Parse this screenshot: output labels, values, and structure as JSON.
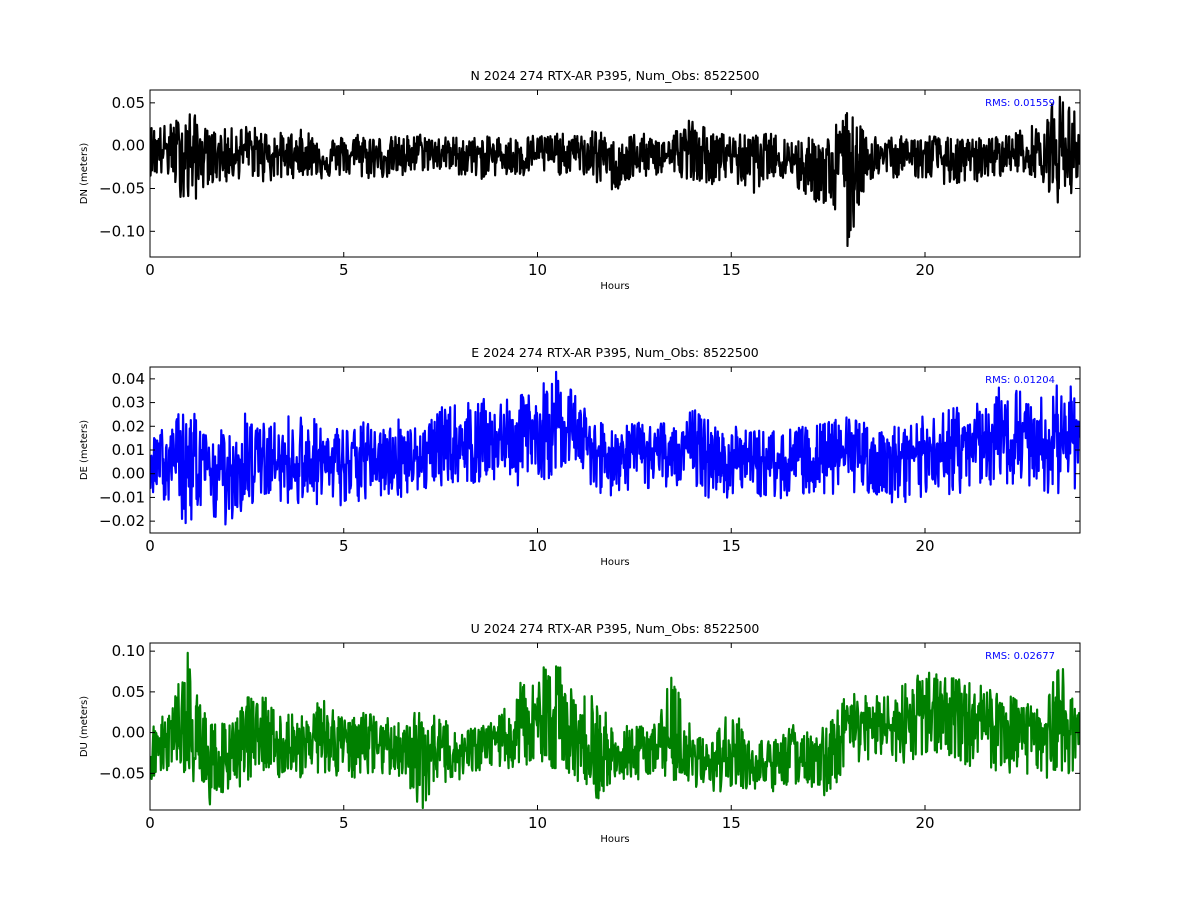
{
  "chart_data": [
    {
      "type": "line",
      "title": "N 2024 274 RTX-AR  P395, Num_Obs: 8522500",
      "xlabel": "Hours",
      "ylabel": "DN (meters)",
      "color": "#000000",
      "rms_text": "RMS:  0.01559",
      "xlim": [
        0,
        24
      ],
      "ylim": [
        -0.13,
        0.065
      ],
      "xticks": [
        0,
        5,
        10,
        15,
        20
      ],
      "xtick_labels": [
        "0",
        "5",
        "10",
        "15",
        "20"
      ],
      "yticks": [
        0.05,
        0.0,
        -0.05,
        -0.1
      ],
      "ytick_labels": [
        "0.05",
        "0.00",
        "−0.05",
        "−0.10"
      ],
      "grid": false,
      "series": [
        {
          "x": [
            0,
            0.5,
            1,
            1.5,
            2,
            2.5,
            3,
            3.5,
            4,
            4.5,
            5,
            5.5,
            6,
            6.5,
            7,
            7.5,
            8,
            8.5,
            9,
            9.5,
            10,
            10.5,
            11,
            11.5,
            12,
            12.5,
            13,
            13.5,
            14,
            14.5,
            15,
            15.5,
            16,
            16.5,
            17,
            17.5,
            18,
            18.5,
            19,
            19.5,
            20,
            20.5,
            21,
            21.5,
            22,
            22.5,
            23,
            23.5,
            24
          ],
          "center": [
            -0.005,
            -0.003,
            -0.005,
            -0.008,
            -0.01,
            -0.003,
            -0.008,
            -0.012,
            -0.008,
            -0.015,
            -0.012,
            -0.01,
            -0.012,
            -0.013,
            -0.005,
            -0.008,
            -0.01,
            -0.012,
            -0.01,
            -0.012,
            -0.008,
            -0.01,
            -0.008,
            -0.008,
            -0.02,
            -0.015,
            -0.012,
            -0.01,
            -0.005,
            -0.012,
            -0.01,
            -0.008,
            -0.01,
            -0.015,
            -0.02,
            -0.03,
            -0.02,
            -0.012,
            -0.012,
            -0.01,
            -0.012,
            -0.015,
            -0.015,
            -0.01,
            -0.008,
            -0.01,
            -0.01,
            -0.005,
            -0.008
          ],
          "upper": [
            0.025,
            0.025,
            0.045,
            0.018,
            0.02,
            0.025,
            0.018,
            0.015,
            0.02,
            0.01,
            0.012,
            0.018,
            0.01,
            0.012,
            0.015,
            0.01,
            0.012,
            0.01,
            0.012,
            0.01,
            0.015,
            0.015,
            0.012,
            0.02,
            0.005,
            0.018,
            0.01,
            0.02,
            0.035,
            0.015,
            0.015,
            0.012,
            0.015,
            0.01,
            0.01,
            0.015,
            0.045,
            0.012,
            0.015,
            0.01,
            0.015,
            0.01,
            0.008,
            0.01,
            0.012,
            0.02,
            0.028,
            0.065,
            0.035
          ],
          "lower": [
            -0.035,
            -0.04,
            -0.075,
            -0.045,
            -0.045,
            -0.035,
            -0.045,
            -0.04,
            -0.035,
            -0.04,
            -0.035,
            -0.04,
            -0.038,
            -0.04,
            -0.03,
            -0.03,
            -0.035,
            -0.04,
            -0.035,
            -0.04,
            -0.032,
            -0.035,
            -0.03,
            -0.045,
            -0.055,
            -0.04,
            -0.035,
            -0.035,
            -0.04,
            -0.045,
            -0.04,
            -0.06,
            -0.035,
            -0.045,
            -0.065,
            -0.07,
            -0.13,
            -0.04,
            -0.04,
            -0.035,
            -0.04,
            -0.045,
            -0.05,
            -0.04,
            -0.035,
            -0.03,
            -0.04,
            -0.075,
            -0.04
          ]
        }
      ]
    },
    {
      "type": "line",
      "title": "E 2024 274 RTX-AR  P395, Num_Obs: 8522500",
      "xlabel": "Hours",
      "ylabel": "DE (meters)",
      "color": "#0000ff",
      "rms_text": "RMS:  0.01204",
      "xlim": [
        0,
        24
      ],
      "ylim": [
        -0.025,
        0.045
      ],
      "xticks": [
        0,
        5,
        10,
        15,
        20
      ],
      "xtick_labels": [
        "0",
        "5",
        "10",
        "15",
        "20"
      ],
      "yticks": [
        0.04,
        0.03,
        0.02,
        0.01,
        0.0,
        -0.01,
        -0.02
      ],
      "ytick_labels": [
        "0.04",
        "0.03",
        "0.02",
        "0.01",
        "0.00",
        "−0.01",
        "−0.02"
      ],
      "grid": false,
      "series": [
        {
          "x": [
            0,
            0.5,
            1,
            1.5,
            2,
            2.5,
            3,
            3.5,
            4,
            4.5,
            5,
            5.5,
            6,
            6.5,
            7,
            7.5,
            8,
            8.5,
            9,
            9.5,
            10,
            10.5,
            11,
            11.5,
            12,
            12.5,
            13,
            13.5,
            14,
            14.5,
            15,
            15.5,
            16,
            16.5,
            17,
            17.5,
            18,
            18.5,
            19,
            19.5,
            20,
            20.5,
            21,
            21.5,
            22,
            22.5,
            23,
            23.5,
            24
          ],
          "center": [
            0.005,
            0.003,
            0.002,
            0.0,
            0.003,
            0.005,
            0.004,
            0.005,
            0.006,
            0.005,
            0.004,
            0.006,
            0.006,
            0.007,
            0.007,
            0.01,
            0.012,
            0.013,
            0.014,
            0.016,
            0.018,
            0.02,
            0.02,
            0.01,
            0.008,
            0.009,
            0.008,
            0.01,
            0.01,
            0.008,
            0.007,
            0.005,
            0.005,
            0.004,
            0.005,
            0.006,
            0.008,
            0.007,
            0.006,
            0.006,
            0.008,
            0.012,
            0.012,
            0.013,
            0.014,
            0.015,
            0.013,
            0.015,
            0.015
          ],
          "upper": [
            0.02,
            0.018,
            0.035,
            0.015,
            0.02,
            0.033,
            0.02,
            0.025,
            0.027,
            0.02,
            0.02,
            0.022,
            0.02,
            0.025,
            0.02,
            0.028,
            0.03,
            0.032,
            0.03,
            0.033,
            0.036,
            0.045,
            0.034,
            0.022,
            0.02,
            0.022,
            0.02,
            0.025,
            0.028,
            0.022,
            0.02,
            0.02,
            0.018,
            0.02,
            0.02,
            0.022,
            0.025,
            0.022,
            0.02,
            0.02,
            0.025,
            0.028,
            0.03,
            0.03,
            0.045,
            0.035,
            0.033,
            0.04,
            0.035
          ],
          "lower": [
            -0.01,
            -0.012,
            -0.025,
            -0.02,
            -0.022,
            -0.015,
            -0.01,
            -0.012,
            -0.015,
            -0.012,
            -0.018,
            -0.012,
            -0.01,
            -0.01,
            -0.008,
            -0.005,
            -0.004,
            -0.005,
            -0.003,
            -0.005,
            -0.005,
            0.0,
            0.005,
            -0.008,
            -0.01,
            -0.006,
            -0.007,
            -0.005,
            -0.005,
            -0.012,
            -0.01,
            -0.01,
            -0.01,
            -0.012,
            -0.008,
            -0.01,
            -0.008,
            -0.008,
            -0.015,
            -0.02,
            -0.012,
            -0.01,
            -0.008,
            -0.006,
            -0.005,
            -0.005,
            -0.006,
            -0.015,
            -0.005
          ]
        }
      ]
    },
    {
      "type": "line",
      "title": "U 2024 274 RTX-AR  P395, Num_Obs: 8522500",
      "xlabel": "Hours",
      "ylabel": "DU (meters)",
      "color": "#008000",
      "rms_text": "RMS:  0.02677",
      "xlim": [
        0,
        24
      ],
      "ylim": [
        -0.095,
        0.11
      ],
      "xticks": [
        0,
        5,
        10,
        15,
        20
      ],
      "xtick_labels": [
        "0",
        "5",
        "10",
        "15",
        "20"
      ],
      "yticks": [
        0.1,
        0.05,
        0.0,
        -0.05
      ],
      "ytick_labels": [
        "0.10",
        "0.05",
        "0.00",
        "−0.05"
      ],
      "grid": false,
      "series": [
        {
          "x": [
            0,
            0.5,
            1,
            1.5,
            2,
            2.5,
            3,
            3.5,
            4,
            4.5,
            5,
            5.5,
            6,
            6.5,
            7,
            7.5,
            8,
            8.5,
            9,
            9.5,
            10,
            10.5,
            11,
            11.5,
            12,
            12.5,
            13,
            13.5,
            14,
            14.5,
            15,
            15.5,
            16,
            16.5,
            17,
            17.5,
            18,
            18.5,
            19,
            19.5,
            20,
            20.5,
            21,
            21.5,
            22,
            22.5,
            23,
            23.5,
            24
          ],
          "center": [
            -0.02,
            -0.005,
            0.0,
            -0.04,
            -0.03,
            0.0,
            0.0,
            -0.015,
            -0.01,
            -0.01,
            -0.015,
            -0.005,
            -0.01,
            -0.02,
            -0.02,
            -0.03,
            -0.025,
            -0.02,
            -0.01,
            0.0,
            0.015,
            0.02,
            -0.01,
            -0.03,
            -0.03,
            -0.025,
            -0.02,
            -0.01,
            -0.025,
            -0.035,
            -0.03,
            -0.035,
            -0.04,
            -0.03,
            -0.035,
            -0.03,
            0.0,
            0.005,
            0.01,
            0.015,
            0.025,
            0.03,
            0.025,
            0.02,
            0.015,
            0.01,
            0.0,
            0.005,
            0.01
          ],
          "upper": [
            0.01,
            0.025,
            0.11,
            0.01,
            0.02,
            0.045,
            0.045,
            0.03,
            0.025,
            0.05,
            0.015,
            0.025,
            0.02,
            0.015,
            0.03,
            0.02,
            0.0,
            0.01,
            0.02,
            0.06,
            0.085,
            0.09,
            0.04,
            0.06,
            0.0,
            0.015,
            0.01,
            0.075,
            0.0,
            -0.01,
            0.04,
            0.0,
            -0.01,
            0.015,
            0.0,
            0.01,
            0.05,
            0.045,
            0.055,
            0.06,
            0.08,
            0.075,
            0.065,
            0.06,
            0.05,
            0.04,
            0.035,
            0.09,
            0.025
          ],
          "lower": [
            -0.06,
            -0.055,
            -0.06,
            -0.09,
            -0.08,
            -0.06,
            -0.045,
            -0.06,
            -0.055,
            -0.05,
            -0.06,
            -0.055,
            -0.05,
            -0.055,
            -0.095,
            -0.065,
            -0.06,
            -0.055,
            -0.045,
            -0.045,
            -0.04,
            -0.045,
            -0.06,
            -0.085,
            -0.06,
            -0.06,
            -0.055,
            -0.06,
            -0.065,
            -0.08,
            -0.07,
            -0.075,
            -0.08,
            -0.065,
            -0.07,
            -0.09,
            -0.05,
            -0.04,
            -0.035,
            -0.04,
            -0.03,
            -0.03,
            -0.04,
            -0.045,
            -0.05,
            -0.055,
            -0.06,
            -0.06,
            -0.04
          ]
        }
      ]
    }
  ]
}
